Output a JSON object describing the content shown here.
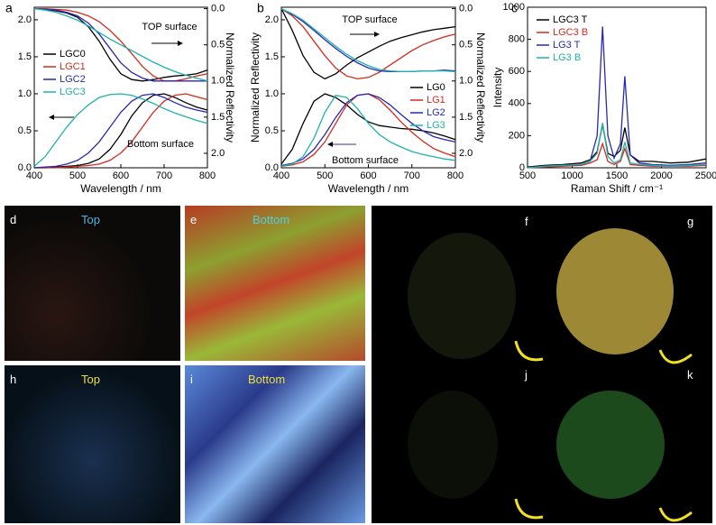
{
  "chart_data": [
    {
      "type": "line",
      "panel": "a",
      "xlabel": "Wavelength / nm",
      "y2label": "Normalized Reflectivity",
      "x": [
        400,
        425,
        450,
        475,
        500,
        525,
        550,
        575,
        600,
        625,
        650,
        675,
        700,
        725,
        750,
        775,
        800
      ],
      "xlim": [
        400,
        800
      ],
      "xticks": [
        400,
        500,
        600,
        700,
        800
      ],
      "ylim": [
        0,
        2.17
      ],
      "yticks": [
        {
          "value": 0,
          "label": "0.0"
        },
        {
          "value": 0.5,
          "label": "0.5"
        },
        {
          "value": 1,
          "label": "1.0"
        },
        {
          "value": 1.5,
          "label": "1.5"
        },
        {
          "value": 2,
          "label": "2.0"
        }
      ],
      "y2lim": [
        -0.02,
        2.2
      ],
      "y2_reversed": true,
      "y2ticks": [
        {
          "value": 0,
          "label": "0.0"
        },
        {
          "value": 0.5,
          "label": "0.5"
        },
        {
          "value": 1,
          "label": "1.0"
        },
        {
          "value": 1.5,
          "label": "1.5"
        },
        {
          "value": 2,
          "label": "2.0"
        }
      ],
      "annotations": [
        "TOP surface",
        "Bottom surface"
      ],
      "series": [
        {
          "name": "LGC0",
          "color": "#000000",
          "values": [
            0,
            0,
            0.01,
            0.02,
            0.03,
            0.06,
            0.12,
            0.25,
            0.45,
            0.7,
            0.88,
            0.98,
            1.0,
            0.95,
            0.88,
            0.82,
            0.78
          ]
        },
        {
          "name": "LGC1",
          "color": "#d42a1e",
          "values": [
            0,
            0,
            0,
            0.01,
            0.02,
            0.03,
            0.05,
            0.1,
            0.2,
            0.35,
            0.55,
            0.75,
            0.9,
            0.98,
            1.0,
            0.96,
            0.92
          ]
        },
        {
          "name": "LGC2",
          "color": "#2828b4",
          "values": [
            0,
            0.01,
            0.02,
            0.05,
            0.1,
            0.2,
            0.35,
            0.55,
            0.75,
            0.9,
            0.98,
            1.0,
            0.95,
            0.88,
            0.82,
            0.78,
            0.75
          ]
        },
        {
          "name": "LGC3",
          "color": "#1fb2a8",
          "values": [
            0.02,
            0.15,
            0.35,
            0.55,
            0.72,
            0.85,
            0.95,
            0.99,
            1.0,
            0.98,
            0.93,
            0.87,
            0.8,
            0.74,
            0.69,
            0.64,
            0.6
          ]
        },
        {
          "color": "#000000",
          "axis": "y2",
          "values": [
            0,
            0.01,
            0.03,
            0.06,
            0.12,
            0.25,
            0.45,
            0.7,
            0.9,
            0.98,
            1.0,
            0.98,
            0.95,
            0.93,
            0.92,
            0.9,
            0.85
          ]
        },
        {
          "color": "#d42a1e",
          "axis": "y2",
          "values": [
            0,
            0,
            0.01,
            0.02,
            0.05,
            0.1,
            0.18,
            0.3,
            0.45,
            0.62,
            0.8,
            0.93,
            1.0,
            1.0,
            0.97,
            0.93,
            0.9
          ]
        },
        {
          "color": "#2828b4",
          "axis": "y2",
          "values": [
            0,
            0.01,
            0.02,
            0.05,
            0.1,
            0.2,
            0.35,
            0.55,
            0.75,
            0.88,
            0.96,
            1.0,
            1.0,
            1.0,
            1.0,
            1.0,
            1.0
          ]
        },
        {
          "color": "#1fb2a8",
          "axis": "y2",
          "values": [
            0,
            0.02,
            0.05,
            0.1,
            0.16,
            0.24,
            0.33,
            0.42,
            0.5,
            0.58,
            0.66,
            0.74,
            0.81,
            0.87,
            0.92,
            0.96,
            1.0
          ]
        }
      ]
    },
    {
      "type": "line",
      "panel": "b",
      "xlabel": "Wavelength / nm",
      "ylabel": "Normalized Reflectivity",
      "y2label": "Normalized Reflectivity",
      "x": [
        400,
        425,
        450,
        475,
        500,
        525,
        550,
        575,
        600,
        625,
        650,
        675,
        700,
        725,
        750,
        775,
        800
      ],
      "xlim": [
        400,
        800
      ],
      "xticks": [
        400,
        500,
        600,
        700,
        800
      ],
      "ylim": [
        0,
        2.17
      ],
      "yticks": [
        {
          "value": 0,
          "label": "0.0"
        },
        {
          "value": 0.5,
          "label": "0.5"
        },
        {
          "value": 1,
          "label": "1.0"
        },
        {
          "value": 1.5,
          "label": "1.5"
        },
        {
          "value": 2,
          "label": "2.0"
        }
      ],
      "y2lim": [
        -0.02,
        2.2
      ],
      "y2_reversed": true,
      "y2ticks": [
        {
          "value": 0,
          "label": "0.0"
        },
        {
          "value": 0.5,
          "label": "0.5"
        },
        {
          "value": 1,
          "label": "1.0"
        },
        {
          "value": 1.5,
          "label": "1.5"
        },
        {
          "value": 2,
          "label": "2.0"
        }
      ],
      "annotations": [
        "TOP surface",
        "Bottom surface"
      ],
      "series": [
        {
          "name": "LG0",
          "color": "#000000",
          "values": [
            0.05,
            0.25,
            0.6,
            0.9,
            1.0,
            0.95,
            0.85,
            0.72,
            0.62,
            0.57,
            0.55,
            0.53,
            0.52,
            0.5,
            0.47,
            0.43,
            0.38
          ]
        },
        {
          "name": "LG1",
          "color": "#d42a1e",
          "values": [
            0.02,
            0.04,
            0.08,
            0.18,
            0.35,
            0.6,
            0.85,
            0.98,
            1.0,
            0.92,
            0.78,
            0.62,
            0.48,
            0.36,
            0.26,
            0.2,
            0.15
          ]
        },
        {
          "name": "LG2",
          "color": "#2828b4",
          "values": [
            0.03,
            0.06,
            0.12,
            0.25,
            0.45,
            0.68,
            0.88,
            0.98,
            1.0,
            0.95,
            0.85,
            0.72,
            0.6,
            0.5,
            0.42,
            0.38,
            0.35
          ]
        },
        {
          "name": "LG3",
          "color": "#1fb2a8",
          "values": [
            0.02,
            0.05,
            0.15,
            0.4,
            0.75,
            0.98,
            0.95,
            0.8,
            0.6,
            0.45,
            0.35,
            0.28,
            0.22,
            0.18,
            0.15,
            0.12,
            0.1
          ]
        },
        {
          "color": "#000000",
          "axis": "y2",
          "values": [
            0,
            0.3,
            0.65,
            0.88,
            0.97,
            0.9,
            0.78,
            0.68,
            0.6,
            0.52,
            0.45,
            0.4,
            0.36,
            0.32,
            0.29,
            0.27,
            0.25
          ]
        },
        {
          "color": "#d42a1e",
          "axis": "y2",
          "values": [
            0,
            0.1,
            0.25,
            0.45,
            0.65,
            0.82,
            0.93,
            0.97,
            0.95,
            0.88,
            0.78,
            0.68,
            0.58,
            0.5,
            0.44,
            0.39,
            0.35
          ]
        },
        {
          "color": "#2828b4",
          "axis": "y2",
          "values": [
            0,
            0.08,
            0.18,
            0.3,
            0.43,
            0.55,
            0.66,
            0.75,
            0.82,
            0.86,
            0.87,
            0.87,
            0.87,
            0.86,
            0.86,
            0.85,
            0.86
          ]
        },
        {
          "color": "#1fb2a8",
          "axis": "y2",
          "values": [
            0,
            0.07,
            0.16,
            0.28,
            0.4,
            0.52,
            0.63,
            0.72,
            0.79,
            0.84,
            0.86,
            0.87,
            0.87,
            0.86,
            0.86,
            0.86,
            0.87
          ]
        }
      ]
    },
    {
      "type": "line",
      "panel": "c",
      "xlabel": "Raman Shift / cm⁻¹",
      "ylabel": "Intensity",
      "x": [
        500,
        700,
        900,
        1100,
        1200,
        1280,
        1340,
        1400,
        1470,
        1540,
        1590,
        1650,
        1750,
        1900,
        2100,
        2300,
        2500
      ],
      "xlim": [
        500,
        2500
      ],
      "xticks": [
        500,
        1000,
        1500,
        2000,
        2500
      ],
      "ylim": [
        0,
        1000
      ],
      "yticks": [
        0,
        200,
        400,
        600,
        800,
        1000
      ],
      "series": [
        {
          "name": "LGC3 T",
          "color": "#000000",
          "values": [
            5,
            15,
            20,
            30,
            50,
            100,
            270,
            90,
            70,
            110,
            250,
            80,
            40,
            40,
            30,
            35,
            55
          ]
        },
        {
          "name": "LGC3 B",
          "color": "#d42a1e",
          "values": [
            0,
            5,
            10,
            15,
            30,
            50,
            150,
            40,
            20,
            40,
            120,
            20,
            15,
            10,
            10,
            10,
            15
          ]
        },
        {
          "name": "LG3 T",
          "color": "#2828b4",
          "values": [
            0,
            10,
            15,
            20,
            40,
            200,
            880,
            200,
            60,
            150,
            570,
            80,
            30,
            20,
            15,
            20,
            30
          ]
        },
        {
          "name": "LG3 B",
          "color": "#1fb2a8",
          "values": [
            0,
            10,
            15,
            20,
            40,
            90,
            280,
            70,
            30,
            50,
            160,
            30,
            20,
            15,
            10,
            15,
            20
          ]
        }
      ]
    }
  ],
  "panels": [
    {
      "letter": "d",
      "caption": "Top"
    },
    {
      "letter": "e",
      "caption": "Bottom"
    },
    {
      "letter": "h",
      "caption": "Top"
    },
    {
      "letter": "i",
      "caption": "Bottom"
    }
  ],
  "photo_labels": [
    "f",
    "g",
    "j",
    "k"
  ]
}
